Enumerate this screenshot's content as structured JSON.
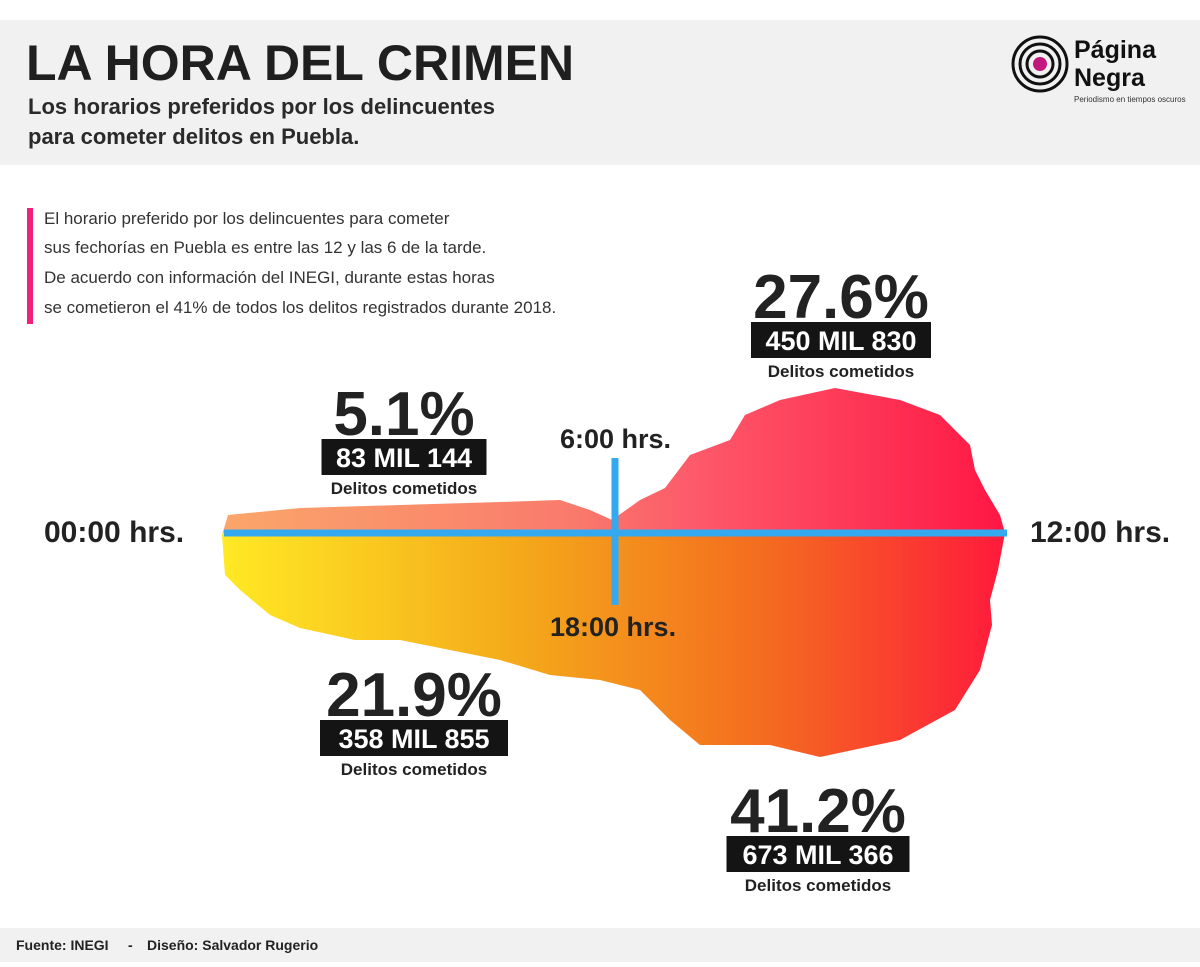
{
  "header": {
    "title": "LA HORA DEL CRIMEN",
    "subtitle": [
      "Los horarios preferidos por los delincuentes",
      "para cometer delitos en Puebla."
    ]
  },
  "logo": {
    "name": [
      "Página",
      "Negra"
    ],
    "tagline": "Periodismo en tiempos oscuros"
  },
  "intro": [
    "El horario preferido por los delincuentes para cometer",
    "sus fechorías en Puebla es entre las 12 y las 6 de la tarde.",
    "De acuerdo con información del INEGI, durante estas horas",
    "se cometieron el 41% de todos los delitos registrados durante 2018."
  ],
  "axis_labels": {
    "left": "00:00 hrs.",
    "top": "6:00 hrs.",
    "right": "12:00 hrs.",
    "bottom": "18:00 hrs."
  },
  "segments": [
    {
      "percent": "5.1%",
      "count": "83 MIL 144",
      "label": "Delitos cometidos"
    },
    {
      "percent": "27.6%",
      "count": "450 MIL 830",
      "label": "Delitos cometidos"
    },
    {
      "percent": "41.2%",
      "count": "673 MIL 366",
      "label": "Delitos cometidos"
    },
    {
      "percent": "21.9%",
      "count": "358 MIL 855",
      "label": "Delitos cometidos"
    }
  ],
  "footer": {
    "source": "Fuente: INEGI",
    "separator": "-",
    "design": "Diseño: Salvador Rugerio"
  }
}
